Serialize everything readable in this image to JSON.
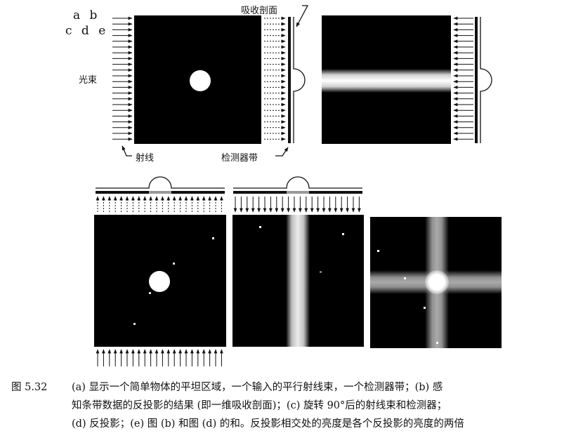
{
  "panel_labels": {
    "row1": "a b",
    "row2": "c d e"
  },
  "annotations": {
    "beam": "光束",
    "ray": "射线",
    "absorption_profile": "吸收剖面",
    "detector_strip": "检测器带"
  },
  "caption": {
    "number": "图 5.32",
    "lines": [
      "(a) 显示一个简单物体的平坦区域，一个输入的平行射线束，一个检测器带；(b) 感",
      "知条带数据的反投影的结果 (即一维吸收剖面)；(c) 旋转 90°后的射线束和检测器；",
      "(d) 反投影；(e) 图 (b) 和图 (d) 的和。反投影相交处的亮度是各个反投影的亮度的两倍"
    ]
  }
}
